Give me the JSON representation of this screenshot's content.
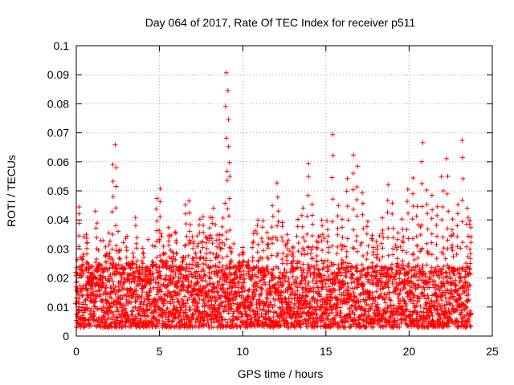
{
  "chart_data": {
    "type": "scatter",
    "title": "Day 064 of 2017, Rate Of TEC Index for receiver p511",
    "xlabel": "GPS time / hours",
    "ylabel": "ROTI / TECUs",
    "xlim": [
      0,
      25
    ],
    "ylim": [
      0,
      0.1
    ],
    "xticks": [
      "0",
      "5",
      "10",
      "15",
      "20",
      "25"
    ],
    "yticks": [
      "0",
      "0.01",
      "0.02",
      "0.03",
      "0.04",
      "0.05",
      "0.06",
      "0.07",
      "0.08",
      "0.09",
      "0.1"
    ],
    "grid": true,
    "marker": "+",
    "marker_color": "#ff0000",
    "series": [
      {
        "name": "",
        "points_note": "dense time series; representative sampled points listed",
        "x": [
          0.0,
          0.2,
          0.4,
          0.6,
          0.8,
          1.0,
          1.2,
          1.4,
          1.6,
          1.8,
          2.0,
          2.2,
          2.4,
          2.6,
          2.8,
          3.0,
          3.2,
          3.4,
          3.6,
          3.8,
          4.0,
          4.2,
          4.4,
          4.6,
          4.8,
          5.0,
          5.2,
          5.4,
          5.6,
          5.8,
          6.0,
          6.2,
          6.4,
          6.6,
          6.8,
          7.0,
          7.2,
          7.4,
          7.6,
          7.8,
          8.0,
          8.2,
          8.4,
          8.6,
          8.8,
          9.0,
          9.1,
          9.2,
          9.3,
          9.5,
          9.8,
          10.0,
          10.3,
          10.6,
          10.9,
          11.2,
          11.5,
          11.8,
          12.1,
          12.4,
          12.7,
          13.0,
          13.3,
          13.6,
          13.9,
          14.2,
          14.5,
          14.8,
          15.1,
          15.4,
          15.7,
          16.0,
          16.3,
          16.6,
          16.9,
          17.2,
          17.5,
          17.8,
          18.1,
          18.4,
          18.7,
          19.0,
          19.3,
          19.6,
          19.9,
          20.2,
          20.5,
          20.8,
          21.1,
          21.4,
          21.7,
          22.0,
          22.3,
          22.6,
          22.9,
          23.2,
          23.5,
          23.7
        ],
        "y": [
          0.012,
          0.045,
          0.028,
          0.035,
          0.02,
          0.015,
          0.043,
          0.025,
          0.018,
          0.03,
          0.035,
          0.06,
          0.065,
          0.03,
          0.022,
          0.035,
          0.025,
          0.028,
          0.04,
          0.018,
          0.03,
          0.014,
          0.012,
          0.025,
          0.047,
          0.05,
          0.03,
          0.025,
          0.038,
          0.03,
          0.035,
          0.022,
          0.028,
          0.045,
          0.047,
          0.035,
          0.03,
          0.04,
          0.042,
          0.035,
          0.04,
          0.045,
          0.038,
          0.035,
          0.04,
          0.09,
          0.085,
          0.06,
          0.03,
          0.02,
          0.025,
          0.03,
          0.025,
          0.035,
          0.04,
          0.04,
          0.035,
          0.045,
          0.053,
          0.04,
          0.035,
          0.03,
          0.04,
          0.045,
          0.06,
          0.045,
          0.035,
          0.04,
          0.04,
          0.069,
          0.045,
          0.04,
          0.055,
          0.063,
          0.058,
          0.05,
          0.04,
          0.035,
          0.03,
          0.04,
          0.052,
          0.045,
          0.035,
          0.04,
          0.05,
          0.055,
          0.045,
          0.067,
          0.05,
          0.048,
          0.045,
          0.055,
          0.061,
          0.04,
          0.045,
          0.068,
          0.045,
          0.04
        ],
        "baseline_min": 0.003,
        "baseline_max": 0.024
      }
    ]
  }
}
